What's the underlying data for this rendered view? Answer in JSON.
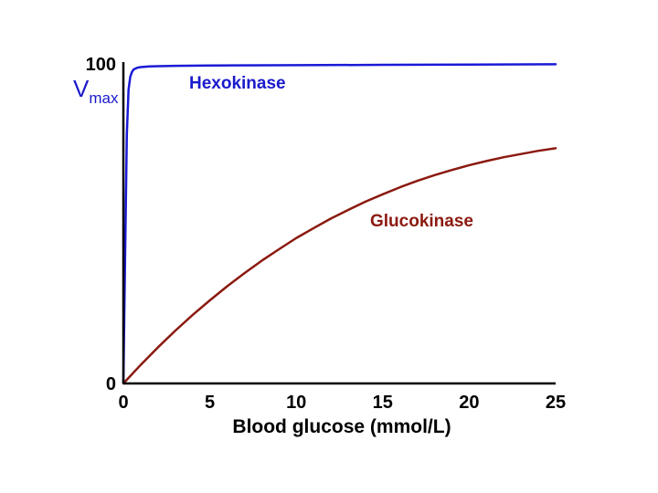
{
  "chart_data": {
    "type": "line",
    "xlabel": "Blood glucose (mmol/L)",
    "ylabel": {
      "main": "V",
      "sub": "max"
    },
    "xlim": [
      0,
      25
    ],
    "ylim": [
      0,
      100
    ],
    "x_ticks": [
      0,
      5,
      10,
      15,
      20,
      25
    ],
    "y_ticks": [
      0,
      100
    ],
    "grid": false,
    "legend": "inline labels",
    "series": [
      {
        "name": "Hexokinase",
        "color": "#1a1ad6",
        "label_color": "#1a1acc",
        "x": [
          0,
          0.1,
          0.2,
          0.3,
          0.4,
          0.5,
          0.6,
          0.8,
          1.0,
          1.5,
          2,
          3,
          5,
          10,
          15,
          20,
          25
        ],
        "y": [
          0,
          40,
          78,
          92,
          96,
          97.5,
          98.3,
          98.8,
          99.0,
          99.2,
          99.3,
          99.4,
          99.5,
          99.6,
          99.7,
          99.8,
          99.9
        ]
      },
      {
        "name": "Glucokinase",
        "color": "#8b1a10",
        "label_color": "#8b1a10",
        "x": [
          0,
          1,
          2,
          3,
          4,
          5,
          6,
          7,
          8,
          9,
          10,
          11,
          12,
          13,
          14,
          15,
          16,
          17,
          18,
          19,
          20,
          21,
          22,
          23,
          24,
          25
        ],
        "y": [
          0,
          5.8,
          11.3,
          16.5,
          21.4,
          26.0,
          30.4,
          34.5,
          38.4,
          42.0,
          45.5,
          48.6,
          51.6,
          54.3,
          56.9,
          59.2,
          61.4,
          63.4,
          65.2,
          66.8,
          68.3,
          69.6,
          70.8,
          71.8,
          72.8,
          73.6
        ]
      }
    ]
  }
}
